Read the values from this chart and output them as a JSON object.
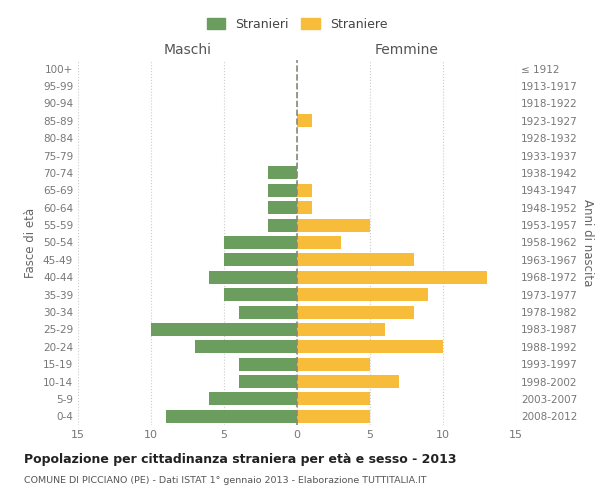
{
  "age_groups": [
    "100+",
    "95-99",
    "90-94",
    "85-89",
    "80-84",
    "75-79",
    "70-74",
    "65-69",
    "60-64",
    "55-59",
    "50-54",
    "45-49",
    "40-44",
    "35-39",
    "30-34",
    "25-29",
    "20-24",
    "15-19",
    "10-14",
    "5-9",
    "0-4"
  ],
  "birth_years": [
    "≤ 1912",
    "1913-1917",
    "1918-1922",
    "1923-1927",
    "1928-1932",
    "1933-1937",
    "1938-1942",
    "1943-1947",
    "1948-1952",
    "1953-1957",
    "1958-1962",
    "1963-1967",
    "1968-1972",
    "1973-1977",
    "1978-1982",
    "1983-1987",
    "1988-1992",
    "1993-1997",
    "1998-2002",
    "2003-2007",
    "2008-2012"
  ],
  "maschi": [
    0,
    0,
    0,
    0,
    0,
    0,
    2,
    2,
    2,
    2,
    5,
    5,
    6,
    5,
    4,
    10,
    7,
    4,
    4,
    6,
    9
  ],
  "femmine": [
    0,
    0,
    0,
    1,
    0,
    0,
    0,
    1,
    1,
    5,
    3,
    8,
    13,
    9,
    8,
    6,
    10,
    5,
    7,
    5,
    5
  ],
  "color_maschi": "#6b9e5e",
  "color_femmine": "#f6bc3a",
  "background_color": "#ffffff",
  "grid_color": "#cccccc",
  "title": "Popolazione per cittadinanza straniera per età e sesso - 2013",
  "subtitle": "COMUNE DI PICCIANO (PE) - Dati ISTAT 1° gennaio 2013 - Elaborazione TUTTITALIA.IT",
  "header_left": "Maschi",
  "header_right": "Femmine",
  "ylabel_left": "Fasce di età",
  "ylabel_right": "Anni di nascita",
  "legend_stranieri": "Stranieri",
  "legend_straniere": "Straniere",
  "xlim": 15,
  "bar_height": 0.75
}
